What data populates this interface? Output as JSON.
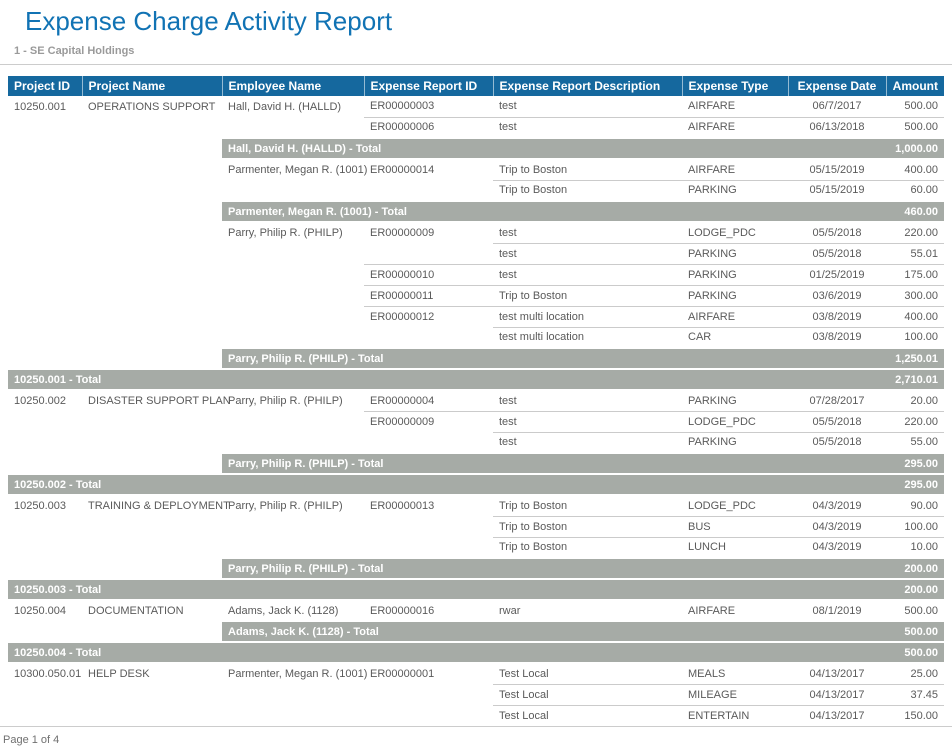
{
  "page": {
    "title": "Expense Charge Activity Report",
    "subtitle": "1 - SE Capital Holdings",
    "footer": "Page 1 of 4"
  },
  "colors": {
    "title": "#1173B4",
    "header_bg": "#15689E",
    "header_text": "#FFFFFF",
    "total_bg": "#A6ABA6",
    "total_text": "#FFFFFF",
    "body_text": "#5A5A5A",
    "subtitle_text": "#9A9A9A",
    "row_border": "#CBCBCB"
  },
  "table": {
    "columns": [
      {
        "label": "Project ID",
        "align": "left"
      },
      {
        "label": "Project Name",
        "align": "left"
      },
      {
        "label": "Employee Name",
        "align": "left"
      },
      {
        "label": "Expense Report ID",
        "align": "left"
      },
      {
        "label": "Expense Report Description",
        "align": "left"
      },
      {
        "label": "Expense Type",
        "align": "left"
      },
      {
        "label": "Expense Date",
        "align": "center"
      },
      {
        "label": "Amount",
        "align": "right"
      }
    ],
    "rows": [
      {
        "type": "data",
        "cells": [
          "10250.001",
          "OPERATIONS SUPPORT",
          "Hall, David H. (HALLD)",
          "ER00000003",
          "test",
          "AIRFARE",
          "06/7/2017",
          "500.00"
        ]
      },
      {
        "type": "data",
        "cells": [
          "",
          "",
          "",
          "ER00000006",
          "test",
          "AIRFARE",
          "06/13/2018",
          "500.00"
        ]
      },
      {
        "type": "employee_total",
        "label": "Hall, David H. (HALLD) - Total",
        "amount": "1,000.00"
      },
      {
        "type": "data",
        "cells": [
          "",
          "",
          "Parmenter, Megan R. (1001)",
          "ER00000014",
          "Trip to Boston",
          "AIRFARE",
          "05/15/2019",
          "400.00"
        ]
      },
      {
        "type": "data",
        "cells": [
          "",
          "",
          "",
          "",
          "Trip to Boston",
          "PARKING",
          "05/15/2019",
          "60.00"
        ]
      },
      {
        "type": "employee_total",
        "label": "Parmenter, Megan R. (1001) - Total",
        "amount": "460.00"
      },
      {
        "type": "data",
        "cells": [
          "",
          "",
          "Parry, Philip R. (PHILP)",
          "ER00000009",
          "test",
          "LODGE_PDC",
          "05/5/2018",
          "220.00"
        ]
      },
      {
        "type": "data",
        "cells": [
          "",
          "",
          "",
          "",
          "test",
          "PARKING",
          "05/5/2018",
          "55.01"
        ]
      },
      {
        "type": "data",
        "cells": [
          "",
          "",
          "",
          "ER00000010",
          "test",
          "PARKING",
          "01/25/2019",
          "175.00"
        ]
      },
      {
        "type": "data",
        "cells": [
          "",
          "",
          "",
          "ER00000011",
          "Trip to Boston",
          "PARKING",
          "03/6/2019",
          "300.00"
        ]
      },
      {
        "type": "data",
        "cells": [
          "",
          "",
          "",
          "ER00000012",
          "test multi location",
          "AIRFARE",
          "03/8/2019",
          "400.00"
        ]
      },
      {
        "type": "data",
        "cells": [
          "",
          "",
          "",
          "",
          "test multi location",
          "CAR",
          "03/8/2019",
          "100.00"
        ]
      },
      {
        "type": "employee_total",
        "label": "Parry, Philip R. (PHILP) - Total",
        "amount": "1,250.01"
      },
      {
        "type": "project_total",
        "label": "10250.001 - Total",
        "amount": "2,710.01"
      },
      {
        "type": "data",
        "cells": [
          "10250.002",
          "DISASTER SUPPORT PLAN",
          "Parry, Philip R. (PHILP)",
          "ER00000004",
          "test",
          "PARKING",
          "07/28/2017",
          "20.00"
        ]
      },
      {
        "type": "data",
        "cells": [
          "",
          "",
          "",
          "ER00000009",
          "test",
          "LODGE_PDC",
          "05/5/2018",
          "220.00"
        ]
      },
      {
        "type": "data",
        "cells": [
          "",
          "",
          "",
          "",
          "test",
          "PARKING",
          "05/5/2018",
          "55.00"
        ]
      },
      {
        "type": "employee_total",
        "label": "Parry, Philip R. (PHILP) - Total",
        "amount": "295.00"
      },
      {
        "type": "project_total",
        "label": "10250.002 - Total",
        "amount": "295.00"
      },
      {
        "type": "data",
        "cells": [
          "10250.003",
          "TRAINING & DEPLOYMENT",
          "Parry, Philip R. (PHILP)",
          "ER00000013",
          "Trip to Boston",
          "LODGE_PDC",
          "04/3/2019",
          "90.00"
        ]
      },
      {
        "type": "data",
        "cells": [
          "",
          "",
          "",
          "",
          "Trip to Boston",
          "BUS",
          "04/3/2019",
          "100.00"
        ]
      },
      {
        "type": "data",
        "cells": [
          "",
          "",
          "",
          "",
          "Trip to Boston",
          "LUNCH",
          "04/3/2019",
          "10.00"
        ]
      },
      {
        "type": "employee_total",
        "label": "Parry, Philip R. (PHILP) - Total",
        "amount": "200.00"
      },
      {
        "type": "project_total",
        "label": "10250.003 - Total",
        "amount": "200.00"
      },
      {
        "type": "data",
        "cells": [
          "10250.004",
          "DOCUMENTATION",
          "Adams, Jack K. (1128)",
          "ER00000016",
          "rwar",
          "AIRFARE",
          "08/1/2019",
          "500.00"
        ]
      },
      {
        "type": "employee_total",
        "label": "Adams, Jack K. (1128) - Total",
        "amount": "500.00"
      },
      {
        "type": "project_total",
        "label": "10250.004 - Total",
        "amount": "500.00"
      },
      {
        "type": "data",
        "cells": [
          "10300.050.01",
          "HELP DESK",
          "Parmenter, Megan R. (1001)",
          "ER00000001",
          "Test Local",
          "MEALS",
          "04/13/2017",
          "25.00"
        ]
      },
      {
        "type": "data",
        "cells": [
          "",
          "",
          "",
          "",
          "Test Local",
          "MILEAGE",
          "04/13/2017",
          "37.45"
        ]
      },
      {
        "type": "data",
        "cells": [
          "",
          "",
          "",
          "",
          "Test Local",
          "ENTERTAIN",
          "04/13/2017",
          "150.00"
        ]
      }
    ]
  }
}
